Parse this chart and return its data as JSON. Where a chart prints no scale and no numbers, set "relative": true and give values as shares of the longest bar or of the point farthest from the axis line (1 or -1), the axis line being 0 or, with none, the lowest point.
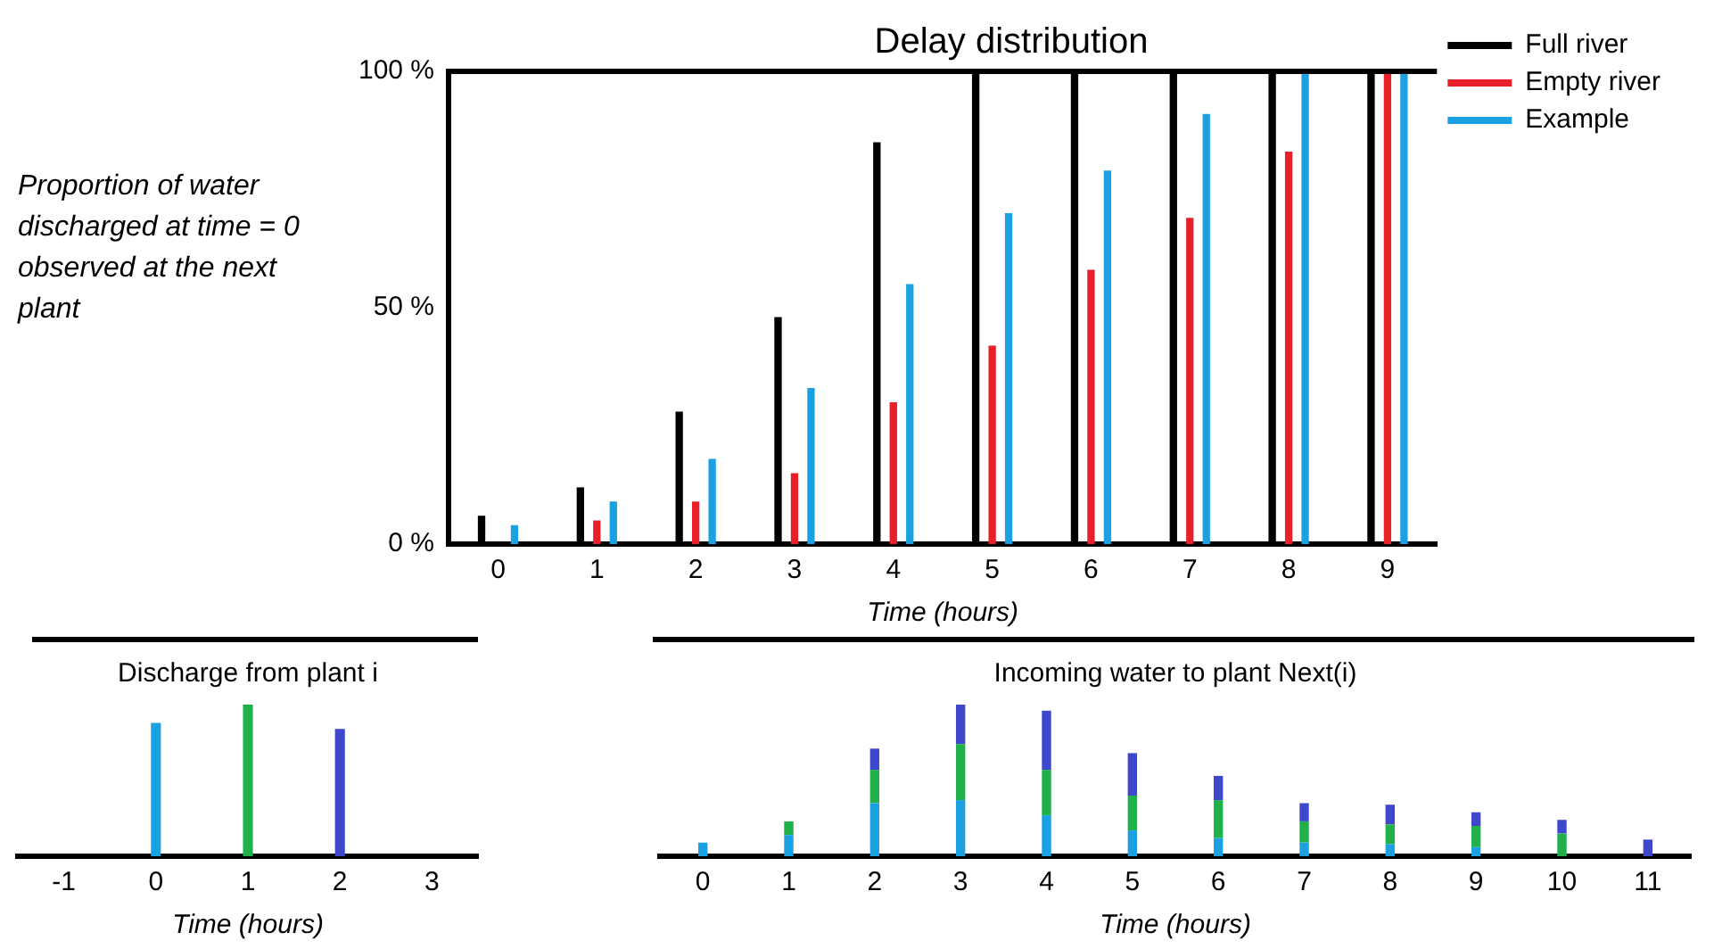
{
  "chart_data": [
    {
      "type": "bar",
      "title": "Delay distribution",
      "xlabel": "Time (hours)",
      "ylabel": "Proportion of water discharged at time = 0 observed at the next plant",
      "categories": [
        "0",
        "1",
        "2",
        "3",
        "4",
        "5",
        "6",
        "7",
        "8",
        "9"
      ],
      "series": [
        {
          "name": "Full river",
          "color": "#000000",
          "values": [
            6,
            12,
            28,
            48,
            85,
            100,
            100,
            100,
            100,
            100
          ]
        },
        {
          "name": "Empty river",
          "color": "#e8202a",
          "values": [
            0,
            5,
            9,
            15,
            30,
            42,
            58,
            69,
            83,
            100
          ]
        },
        {
          "name": "Example",
          "color": "#1ba1e2",
          "values": [
            4,
            9,
            18,
            33,
            55,
            70,
            79,
            91,
            100,
            100
          ]
        }
      ],
      "ylim": [
        0,
        100
      ],
      "yticks": [
        {
          "value": 0,
          "label": "0 %"
        },
        {
          "value": 50,
          "label": "50 %"
        },
        {
          "value": 100,
          "label": "100 %"
        }
      ],
      "grid": false,
      "legend": "top right"
    },
    {
      "type": "bar",
      "title": "Discharge from plant i",
      "xlabel": "Time (hours)",
      "categories": [
        "-1",
        "0",
        "1",
        "2",
        "3"
      ],
      "values": [
        null,
        0.88,
        1,
        0.84,
        null
      ],
      "colors": [
        "#1ba1e2",
        "#1ba1e2",
        "#22b04b",
        "#3f48cc",
        "#3f48cc"
      ],
      "relative": true,
      "grid": false,
      "legend": false
    },
    {
      "type": "bar",
      "title": "Incoming water to plant Next(i)",
      "xlabel": "Time (hours)",
      "categories": [
        "0",
        "1",
        "2",
        "3",
        "4",
        "5",
        "6",
        "7",
        "8",
        "9",
        "10",
        "11"
      ],
      "stacked": true,
      "relative": true,
      "grid": false,
      "legend": false,
      "series": [
        {
          "color": "#1ba1e2",
          "values": [
            0.09,
            0.14,
            0.35,
            0.37,
            0.27,
            0.17,
            0.12,
            0.09,
            0.08,
            0.06,
            0,
            0
          ]
        },
        {
          "color": "#22b04b",
          "values": [
            0,
            0.09,
            0.22,
            0.37,
            0.3,
            0.23,
            0.25,
            0.14,
            0.13,
            0.14,
            0.15,
            0
          ]
        },
        {
          "color": "#3f48cc",
          "values": [
            0,
            0,
            0.14,
            0.26,
            0.39,
            0.28,
            0.16,
            0.12,
            0.13,
            0.09,
            0.09,
            0.11
          ]
        }
      ]
    }
  ]
}
